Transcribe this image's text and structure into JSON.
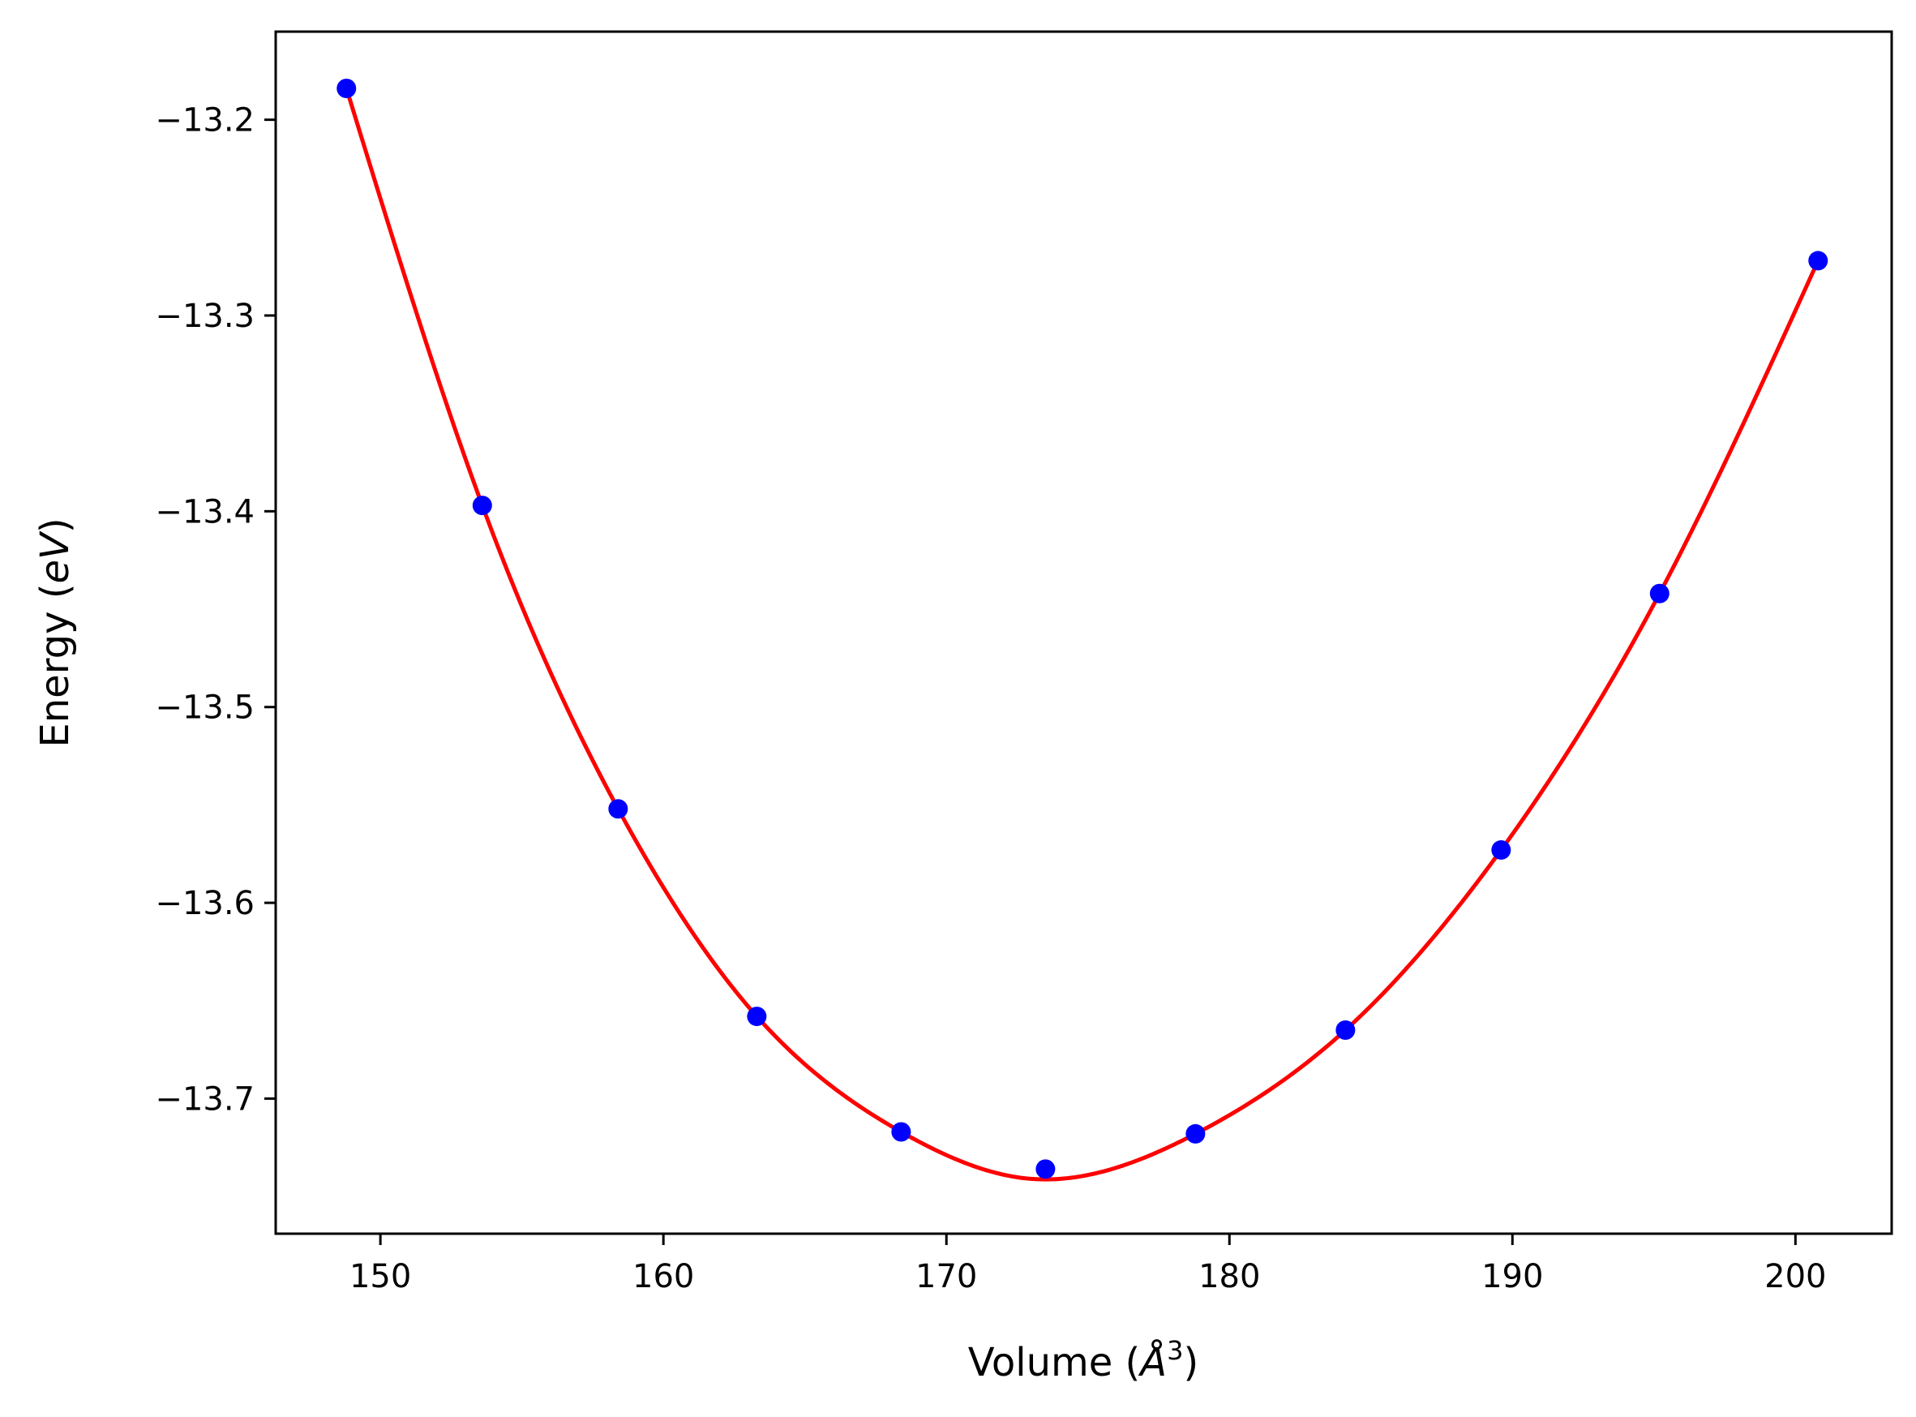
{
  "chart_data": {
    "type": "scatter",
    "title": "",
    "xlabel": "Volume (Å³)",
    "xlabel_prefix": "Volume (",
    "xlabel_italic": "Å",
    "xlabel_sup": "3",
    "xlabel_suffix": ")",
    "ylabel_prefix": "Energy (",
    "ylabel_italic": "eV",
    "ylabel_suffix": ")",
    "xlim": [
      146.3,
      203.4
    ],
    "ylim": [
      -13.769,
      -13.155
    ],
    "xticks": [
      150,
      160,
      170,
      180,
      190,
      200
    ],
    "yticks": [
      -13.2,
      -13.3,
      -13.4,
      -13.5,
      -13.6,
      -13.7
    ],
    "xtick_labels": [
      "150",
      "160",
      "170",
      "180",
      "190",
      "200"
    ],
    "ytick_labels": [
      "−13.2",
      "−13.3",
      "−13.4",
      "−13.5",
      "−13.6",
      "−13.7"
    ],
    "grid": false,
    "series": [
      {
        "kind": "points",
        "color": "#0000ff",
        "x": [
          148.8,
          153.6,
          158.4,
          163.3,
          168.4,
          173.5,
          178.8,
          184.1,
          189.6,
          195.2,
          200.8
        ],
        "y": [
          -13.184,
          -13.397,
          -13.552,
          -13.658,
          -13.717,
          -13.736,
          -13.718,
          -13.665,
          -13.573,
          -13.442,
          -13.272
        ]
      },
      {
        "kind": "fit-line",
        "color": "#ff0000",
        "x": [
          148.8,
          153.6,
          158.4,
          163.3,
          168.4,
          173.0,
          178.8,
          184.1,
          189.6,
          195.2,
          200.8
        ],
        "y": [
          -13.184,
          -13.397,
          -13.552,
          -13.658,
          -13.717,
          -13.741,
          -13.718,
          -13.665,
          -13.573,
          -13.442,
          -13.272
        ]
      }
    ]
  }
}
